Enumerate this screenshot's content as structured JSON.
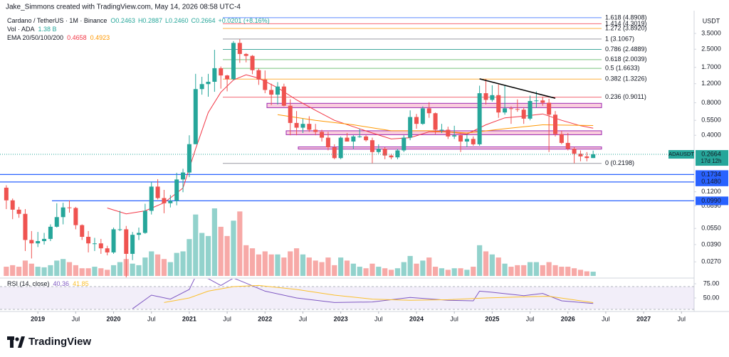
{
  "header": {
    "attribution": "Jake_Simmons created with TradingView.com, May 14, 2026 08:58 UTC-4",
    "brand": "TradingView"
  },
  "chart_data": {
    "type": "candlestick",
    "symbol": "Cardano / TetherUS · 1M · Binance",
    "legend_values": [
      "O0.2463",
      "H0.2887",
      "L0.2460",
      "C0.2664",
      "+0.0201 (+8.16%)"
    ],
    "x": [
      "2018-08",
      "2018-09",
      "2018-10",
      "2018-11",
      "2018-12",
      "2019-01",
      "2019-02",
      "2019-03",
      "2019-04",
      "2019-05",
      "2019-06",
      "2019-07",
      "2019-08",
      "2019-09",
      "2019-10",
      "2019-11",
      "2019-12",
      "2020-01",
      "2020-02",
      "2020-03",
      "2020-04",
      "2020-05",
      "2020-06",
      "2020-07",
      "2020-08",
      "2020-09",
      "2020-10",
      "2020-11",
      "2020-12",
      "2021-01",
      "2021-02",
      "2021-03",
      "2021-04",
      "2021-05",
      "2021-06",
      "2021-07",
      "2021-08",
      "2021-09",
      "2021-10",
      "2021-11",
      "2021-12",
      "2022-01",
      "2022-02",
      "2022-03",
      "2022-04",
      "2022-05",
      "2022-06",
      "2022-07",
      "2022-08",
      "2022-09",
      "2022-10",
      "2022-11",
      "2022-12",
      "2023-01",
      "2023-02",
      "2023-03",
      "2023-04",
      "2023-05",
      "2023-06",
      "2023-07",
      "2023-08",
      "2023-09",
      "2023-10",
      "2023-11",
      "2023-12",
      "2024-01",
      "2024-02",
      "2024-03",
      "2024-04",
      "2024-05",
      "2024-06",
      "2024-07",
      "2024-08",
      "2024-09",
      "2024-10",
      "2024-11",
      "2024-12",
      "2025-01",
      "2025-02",
      "2025-03",
      "2025-04",
      "2025-05",
      "2025-06",
      "2025-07",
      "2025-08",
      "2025-09",
      "2025-10",
      "2025-11",
      "2025-12",
      "2026-01",
      "2026-02",
      "2026-03",
      "2026-04",
      "2026-05"
    ],
    "open": [
      0.131,
      0.1,
      0.082,
      0.075,
      0.043,
      0.04,
      0.042,
      0.044,
      0.057,
      0.07,
      0.086,
      0.085,
      0.059,
      0.046,
      0.04,
      0.04,
      0.036,
      0.033,
      0.054,
      0.054,
      0.032,
      0.048,
      0.05,
      0.08,
      0.134,
      0.105,
      0.094,
      0.099,
      0.156,
      0.181,
      0.331,
      1.07,
      1.19,
      1.25,
      1.67,
      1.43,
      1.32,
      2.86,
      2.26,
      2.17,
      1.6,
      1.31,
      1.05,
      0.95,
      1.13,
      0.75,
      0.52,
      0.47,
      0.51,
      0.45,
      0.43,
      0.38,
      0.31,
      0.246,
      0.38,
      0.35,
      0.39,
      0.39,
      0.36,
      0.28,
      0.3,
      0.26,
      0.25,
      0.29,
      0.38,
      0.59,
      0.51,
      0.71,
      0.64,
      0.45,
      0.45,
      0.39,
      0.4,
      0.35,
      0.37,
      0.33,
      0.98,
      0.85,
      0.94,
      0.65,
      0.71,
      0.7,
      0.69,
      0.57,
      0.83,
      0.84,
      0.8,
      0.62,
      0.41,
      0.34,
      0.3,
      0.27,
      0.255,
      0.2463
    ],
    "high": [
      0.138,
      0.104,
      0.087,
      0.083,
      0.052,
      0.051,
      0.05,
      0.06,
      0.094,
      0.095,
      0.1,
      0.087,
      0.06,
      0.052,
      0.045,
      0.044,
      0.038,
      0.056,
      0.08,
      0.058,
      0.051,
      0.056,
      0.093,
      0.148,
      0.157,
      0.125,
      0.112,
      0.18,
      0.196,
      0.4,
      1.48,
      1.39,
      1.48,
      2.47,
      1.73,
      1.45,
      2.97,
      3.1,
      2.3,
      2.21,
      1.66,
      1.59,
      1.2,
      1.24,
      1.2,
      0.86,
      0.67,
      0.57,
      0.6,
      0.51,
      0.45,
      0.43,
      0.33,
      0.39,
      0.42,
      0.4,
      0.46,
      0.4,
      0.38,
      0.33,
      0.31,
      0.27,
      0.3,
      0.4,
      0.68,
      0.63,
      0.74,
      0.81,
      0.65,
      0.51,
      0.48,
      0.49,
      0.41,
      0.41,
      0.39,
      1.15,
      1.33,
      1.16,
      1.18,
      1.17,
      0.74,
      0.86,
      0.72,
      0.93,
      1.02,
      0.91,
      0.87,
      0.67,
      0.44,
      0.42,
      0.31,
      0.29,
      0.28,
      0.2887
    ],
    "low": [
      0.083,
      0.067,
      0.069,
      0.034,
      0.029,
      0.037,
      0.039,
      0.042,
      0.056,
      0.06,
      0.077,
      0.054,
      0.043,
      0.033,
      0.034,
      0.032,
      0.031,
      0.032,
      0.052,
      0.018,
      0.028,
      0.043,
      0.049,
      0.074,
      0.102,
      0.076,
      0.086,
      0.09,
      0.119,
      0.164,
      0.33,
      0.95,
      0.91,
      1.01,
      1.08,
      1.02,
      1.3,
      1.87,
      1.89,
      1.47,
      1.17,
      0.98,
      0.76,
      0.77,
      0.74,
      0.4,
      0.4,
      0.42,
      0.43,
      0.4,
      0.35,
      0.29,
      0.24,
      0.24,
      0.35,
      0.3,
      0.38,
      0.35,
      0.22,
      0.27,
      0.24,
      0.24,
      0.24,
      0.28,
      0.36,
      0.46,
      0.5,
      0.58,
      0.41,
      0.42,
      0.37,
      0.37,
      0.28,
      0.31,
      0.32,
      0.32,
      0.77,
      0.82,
      0.58,
      0.62,
      0.51,
      0.66,
      0.51,
      0.55,
      0.72,
      0.75,
      0.28,
      0.39,
      0.33,
      0.29,
      0.22,
      0.23,
      0.23,
      0.246
    ],
    "close": [
      0.1,
      0.082,
      0.075,
      0.043,
      0.04,
      0.042,
      0.044,
      0.057,
      0.07,
      0.086,
      0.085,
      0.059,
      0.046,
      0.04,
      0.04,
      0.036,
      0.033,
      0.054,
      0.054,
      0.032,
      0.048,
      0.05,
      0.08,
      0.134,
      0.105,
      0.094,
      0.099,
      0.156,
      0.181,
      0.331,
      1.07,
      1.19,
      1.25,
      1.67,
      1.43,
      1.32,
      2.86,
      2.26,
      2.17,
      1.6,
      1.31,
      1.05,
      0.95,
      1.13,
      0.75,
      0.52,
      0.47,
      0.51,
      0.45,
      0.43,
      0.38,
      0.31,
      0.246,
      0.38,
      0.35,
      0.39,
      0.39,
      0.36,
      0.28,
      0.3,
      0.26,
      0.25,
      0.29,
      0.38,
      0.59,
      0.51,
      0.71,
      0.64,
      0.45,
      0.45,
      0.39,
      0.4,
      0.35,
      0.37,
      0.33,
      0.98,
      0.85,
      0.94,
      0.65,
      0.71,
      0.7,
      0.69,
      0.57,
      0.83,
      0.84,
      0.8,
      0.62,
      0.41,
      0.34,
      0.3,
      0.27,
      0.255,
      0.2463,
      0.2664
    ],
    "up_color": "#26a69a",
    "down_color": "#ef5350",
    "xlim": [
      "2018-07",
      "2027-09"
    ],
    "xticks": [
      {
        "value": "2019-01",
        "label": "2019"
      },
      {
        "value": "2019-07",
        "label": "Jul"
      },
      {
        "value": "2020-01",
        "label": "2020"
      },
      {
        "value": "2020-07",
        "label": "Jul"
      },
      {
        "value": "2021-01",
        "label": "2021"
      },
      {
        "value": "2021-07",
        "label": "Jul"
      },
      {
        "value": "2022-01",
        "label": "2022"
      },
      {
        "value": "2022-07",
        "label": "Jul"
      },
      {
        "value": "2023-01",
        "label": "2023"
      },
      {
        "value": "2023-07",
        "label": "Jul"
      },
      {
        "value": "2024-01",
        "label": "2024"
      },
      {
        "value": "2024-07",
        "label": "Jul"
      },
      {
        "value": "2025-01",
        "label": "2025"
      },
      {
        "value": "2025-07",
        "label": "Jul"
      },
      {
        "value": "2026-01",
        "label": "2026"
      },
      {
        "value": "2026-07",
        "label": "Jul"
      },
      {
        "value": "2027-01",
        "label": "2027"
      },
      {
        "value": "2027-07",
        "label": "Jul"
      }
    ],
    "ylim": [
      0.0194,
      5.27
    ],
    "log_scale": true,
    "grid": false,
    "axis_unit": "USDT",
    "yticks": [
      {
        "value": 3.5,
        "label": "3.5000"
      },
      {
        "value": 2.5,
        "label": "2.5000"
      },
      {
        "value": 1.7,
        "label": "1.7000"
      },
      {
        "value": 1.2,
        "label": "1.2000"
      },
      {
        "value": 0.8,
        "label": "0.8000"
      },
      {
        "value": 0.55,
        "label": "0.5500"
      },
      {
        "value": 0.4,
        "label": "0.4000"
      },
      {
        "value": 0.12,
        "label": "0.1200"
      },
      {
        "value": 0.089,
        "label": "0.0890"
      },
      {
        "value": 0.055,
        "label": "0.0550"
      },
      {
        "value": 0.039,
        "label": "0.0390"
      },
      {
        "value": 0.027,
        "label": "0.0270"
      }
    ],
    "last_price": {
      "symbol": "ADAUSDT",
      "countdown": "17d 12h"
    },
    "volume": {
      "title": "Vol · ADA",
      "last_label": "1.38 B",
      "values": [
        3.0,
        3.5,
        3.0,
        5.0,
        4.0,
        3.0,
        2.8,
        3.5,
        5.0,
        5.5,
        4.5,
        3.5,
        2.5,
        2.5,
        3.0,
        2.5,
        2.0,
        3.5,
        4.5,
        5.5,
        4.0,
        3.5,
        6.0,
        8.0,
        7.0,
        5.5,
        4.5,
        7.5,
        8.0,
        12,
        20,
        14,
        13,
        22,
        16,
        13,
        18,
        21,
        10,
        9,
        7,
        8,
        7,
        7,
        6,
        8,
        9,
        7,
        6,
        5,
        4.5,
        6,
        3.5,
        6,
        5,
        4,
        3,
        2.5,
        4,
        3,
        2.5,
        2,
        2.5,
        4.5,
        6.5,
        4,
        5,
        6,
        3,
        2.5,
        2,
        2.5,
        2.5,
        2,
        3,
        10,
        8,
        7,
        6,
        4,
        3,
        3.5,
        3.5,
        4.5,
        4.5,
        3.5,
        4.5,
        3.5,
        3,
        3,
        2.5,
        2,
        1.5,
        1.38
      ]
    },
    "ema_title": "EMA 20/50/100/200",
    "ema": [
      {
        "color": "#f23645",
        "x": [
          "2019-12",
          "2020-03",
          "2020-06",
          "2020-09",
          "2020-12",
          "2021-02",
          "2021-04",
          "2021-06",
          "2021-08",
          "2021-10",
          "2021-12",
          "2022-03",
          "2022-06",
          "2022-09",
          "2022-12",
          "2023-03",
          "2023-06",
          "2023-09",
          "2023-12",
          "2024-03",
          "2024-06",
          "2024-09",
          "2024-12",
          "2025-03",
          "2025-06",
          "2025-09",
          "2025-12",
          "2026-03",
          "2026-05"
        ],
        "values": [
          0.085,
          0.075,
          0.08,
          0.095,
          0.13,
          0.3,
          0.65,
          1.0,
          1.3,
          1.45,
          1.35,
          1.1,
          0.85,
          0.68,
          0.55,
          0.48,
          0.42,
          0.37,
          0.38,
          0.43,
          0.43,
          0.41,
          0.5,
          0.58,
          0.6,
          0.63,
          0.55,
          0.49,
          0.4658
        ]
      },
      {
        "color": "#ff9800",
        "x": [
          "2022-03",
          "2022-09",
          "2023-03",
          "2023-09",
          "2024-03",
          "2024-09",
          "2025-03",
          "2025-09",
          "2026-05"
        ],
        "values": [
          0.62,
          0.55,
          0.5,
          0.44,
          0.44,
          0.42,
          0.46,
          0.5,
          0.4923
        ]
      }
    ],
    "fib_levels": [
      {
        "value": 4.8908,
        "label": "1.618 (4.8908)",
        "color": "#2962ff"
      },
      {
        "value": 4.3019,
        "label": "1.414 (4.3019)",
        "color": "#f23645"
      },
      {
        "value": 3.892,
        "label": "1.272 (3.8920)",
        "color": "#ff9800"
      },
      {
        "value": 3.1067,
        "label": "1 (3.1067)",
        "color": "#787b86"
      },
      {
        "value": 2.4889,
        "label": "0.786 (2.4889)",
        "color": "#00897b"
      },
      {
        "value": 2.0039,
        "label": "0.618 (2.0039)",
        "color": "#4caf50"
      },
      {
        "value": 1.6633,
        "label": "0.5 (1.6633)",
        "color": "#4caf50"
      },
      {
        "value": 1.3226,
        "label": "0.382 (1.3226)",
        "color": "#ff9800"
      },
      {
        "value": 0.9011,
        "label": "0.236 (0.9011)",
        "color": "#f23645"
      },
      {
        "value": 0.2198,
        "label": "0 (0.2198)",
        "color": "#787b86"
      }
    ],
    "hlines": [
      {
        "value": 0.1734,
        "label": "0.1734"
      },
      {
        "value": 0.148,
        "label": "0.1480"
      },
      {
        "value": 0.099,
        "label": "0.0990"
      }
    ],
    "hline_color": "#2962ff",
    "zones": [
      {
        "top": 0.79,
        "bottom": 0.72
      },
      {
        "top": 0.44,
        "bottom": 0.405
      },
      {
        "top": 0.312,
        "bottom": 0.298
      }
    ],
    "trendline": {
      "x": [
        "2024-11",
        "2025-11"
      ],
      "values": [
        1.33,
        0.88
      ],
      "color": "#000000"
    },
    "rsi": {
      "title": "RSI (14, close)",
      "ylim": [
        27.5,
        80
      ],
      "band": [
        30,
        70
      ],
      "yticks": [
        {
          "value": 75,
          "label": "75.00"
        },
        {
          "value": 50,
          "label": "50.00"
        }
      ],
      "series": [
        {
          "color": "#7e57c2",
          "x": [
            "2020-04",
            "2020-07",
            "2020-10",
            "2021-01",
            "2021-02",
            "2021-04",
            "2021-06",
            "2021-08",
            "2021-10",
            "2022-01",
            "2022-06",
            "2022-12",
            "2023-06",
            "2023-12",
            "2024-06",
            "2024-10",
            "2024-11",
            "2025-01",
            "2025-06",
            "2025-09",
            "2025-12",
            "2026-05"
          ],
          "values": [
            31,
            55,
            48,
            65,
            88,
            84,
            72,
            85,
            76,
            62,
            50,
            42,
            43,
            51,
            46,
            45,
            62,
            60,
            54,
            58,
            45,
            40.36
          ]
        },
        {
          "color": "#fbc02d",
          "x": [
            "2020-09",
            "2021-01",
            "2021-04",
            "2021-08",
            "2021-12",
            "2022-06",
            "2022-12",
            "2023-06",
            "2023-12",
            "2024-06",
            "2024-12",
            "2025-06",
            "2025-10",
            "2026-05"
          ],
          "values": [
            42,
            50,
            62,
            70,
            72,
            65,
            55,
            48,
            46,
            47,
            50,
            52,
            53,
            41.85
          ]
        }
      ]
    }
  }
}
